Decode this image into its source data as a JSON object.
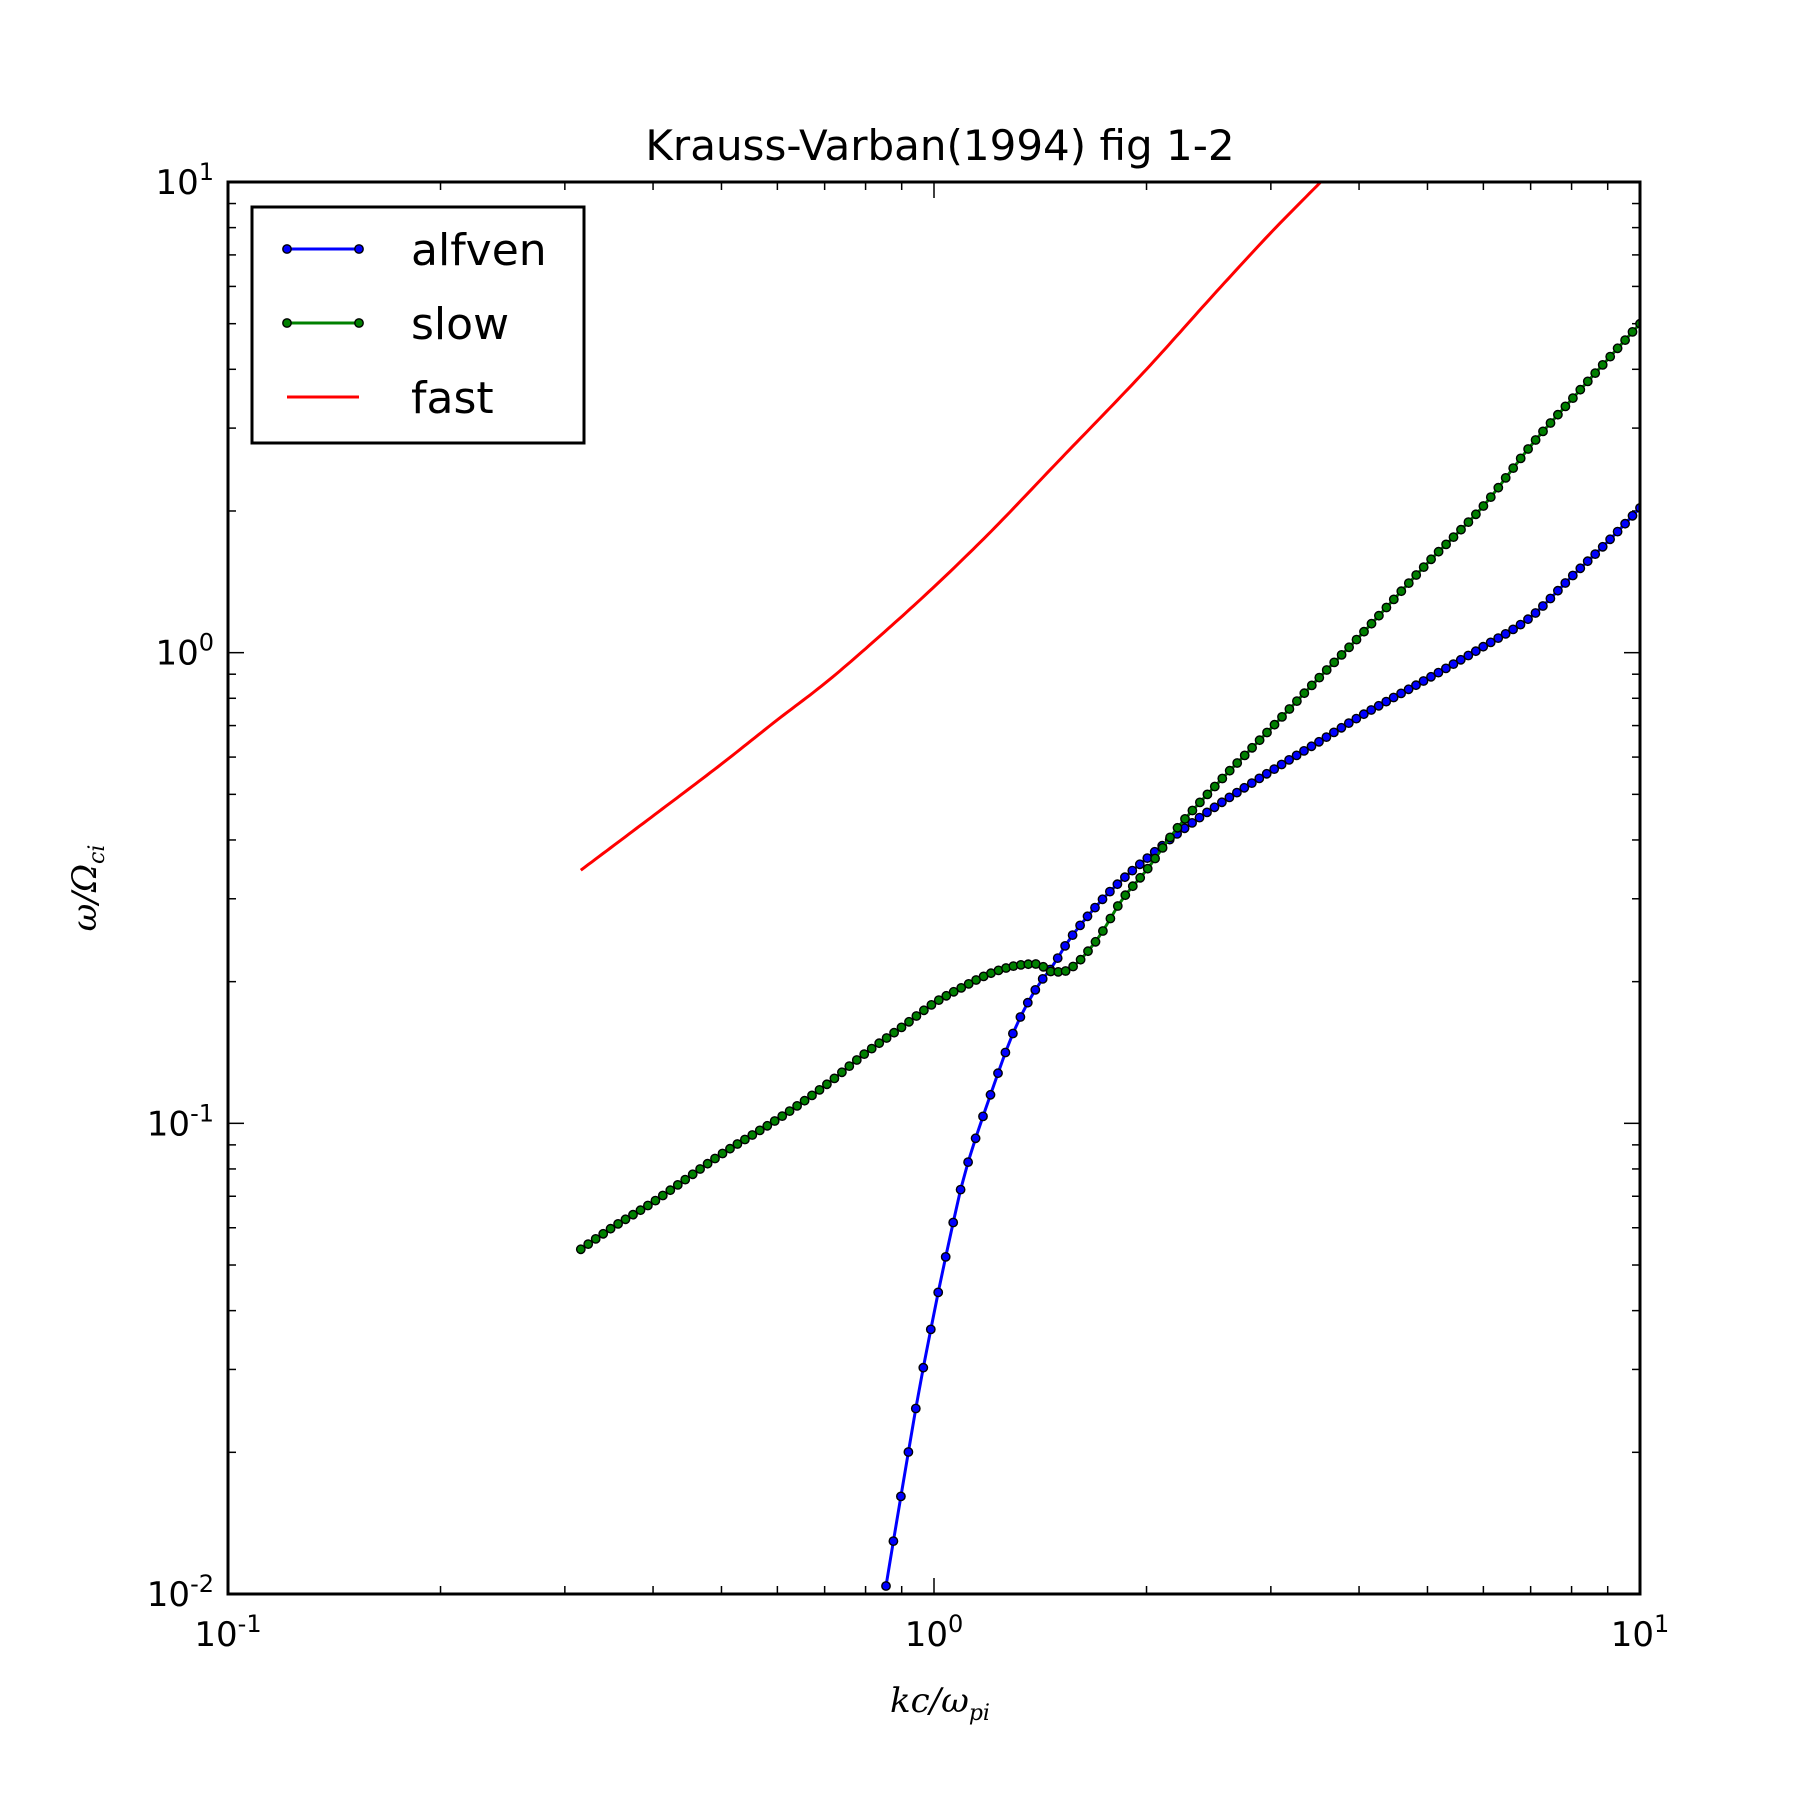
{
  "chart_data": {
    "type": "line",
    "title": "Krauss-Varban(1994) fig 1-2",
    "xlabel": {
      "base": "kc/ω",
      "sub": "pi"
    },
    "ylabel": {
      "base": "ω/Ω",
      "sub": "ci"
    },
    "xscale": "log",
    "yscale": "log",
    "xlim": [
      0.1,
      10
    ],
    "ylim": [
      0.01,
      10
    ],
    "x_ticks": [
      {
        "base": "10",
        "exp": "-1"
      },
      {
        "base": "10",
        "exp": "0"
      },
      {
        "base": "10",
        "exp": "1"
      }
    ],
    "y_ticks": [
      {
        "base": "10",
        "exp": "-2"
      },
      {
        "base": "10",
        "exp": "-1"
      },
      {
        "base": "10",
        "exp": "0"
      },
      {
        "base": "10",
        "exp": "1"
      }
    ],
    "grid": false,
    "legend_position": "top-left",
    "series": [
      {
        "name": "alfven",
        "color": "#0000ff",
        "marker": "circle",
        "points": [
          [
            0.855,
            0.0104
          ],
          [
            0.9,
            0.0165
          ],
          [
            0.95,
            0.0265
          ],
          [
            1.0,
            0.0395
          ],
          [
            1.05,
            0.056
          ],
          [
            1.1,
            0.076
          ],
          [
            1.2,
            0.114
          ],
          [
            1.3,
            0.158
          ],
          [
            1.4,
            0.195
          ],
          [
            1.47,
            0.215
          ],
          [
            1.55,
            0.244
          ],
          [
            1.7,
            0.29
          ],
          [
            1.85,
            0.33
          ],
          [
            2.0,
            0.365
          ],
          [
            2.2,
            0.41
          ],
          [
            2.5,
            0.47
          ],
          [
            3.0,
            0.56
          ],
          [
            3.5,
            0.645
          ],
          [
            4.0,
            0.73
          ],
          [
            5.0,
            0.88
          ],
          [
            6.0,
            1.03
          ],
          [
            7.0,
            1.19
          ],
          [
            8.0,
            1.45
          ],
          [
            9.0,
            1.72
          ],
          [
            10.0,
            2.03
          ]
        ]
      },
      {
        "name": "slow",
        "color": "#008000",
        "marker": "circle",
        "points": [
          [
            0.316,
            0.054
          ],
          [
            0.35,
            0.06
          ],
          [
            0.4,
            0.068
          ],
          [
            0.45,
            0.077
          ],
          [
            0.5,
            0.086
          ],
          [
            0.6,
            0.102
          ],
          [
            0.7,
            0.12
          ],
          [
            0.8,
            0.141
          ],
          [
            0.9,
            0.16
          ],
          [
            1.0,
            0.18
          ],
          [
            1.1,
            0.195
          ],
          [
            1.2,
            0.208
          ],
          [
            1.3,
            0.216
          ],
          [
            1.4,
            0.218
          ],
          [
            1.47,
            0.21
          ],
          [
            1.55,
            0.212
          ],
          [
            1.7,
            0.245
          ],
          [
            1.85,
            0.3
          ],
          [
            2.0,
            0.345
          ],
          [
            2.2,
            0.42
          ],
          [
            2.5,
            0.52
          ],
          [
            3.0,
            0.69
          ],
          [
            3.5,
            0.88
          ],
          [
            4.0,
            1.08
          ],
          [
            5.0,
            1.55
          ],
          [
            6.0,
            2.05
          ],
          [
            7.0,
            2.75
          ],
          [
            8.0,
            3.45
          ],
          [
            9.0,
            4.2
          ],
          [
            10.0,
            5.0
          ]
        ]
      },
      {
        "name": "fast",
        "color": "#ff0000",
        "marker": "none",
        "points": [
          [
            0.316,
            0.345
          ],
          [
            0.4,
            0.45
          ],
          [
            0.5,
            0.58
          ],
          [
            0.6,
            0.72
          ],
          [
            0.7,
            0.86
          ],
          [
            0.8,
            1.02
          ],
          [
            1.0,
            1.38
          ],
          [
            1.2,
            1.8
          ],
          [
            1.5,
            2.55
          ],
          [
            2.0,
            4.0
          ],
          [
            2.5,
            5.8
          ],
          [
            3.0,
            7.8
          ],
          [
            3.53,
            10.0
          ]
        ]
      }
    ]
  }
}
